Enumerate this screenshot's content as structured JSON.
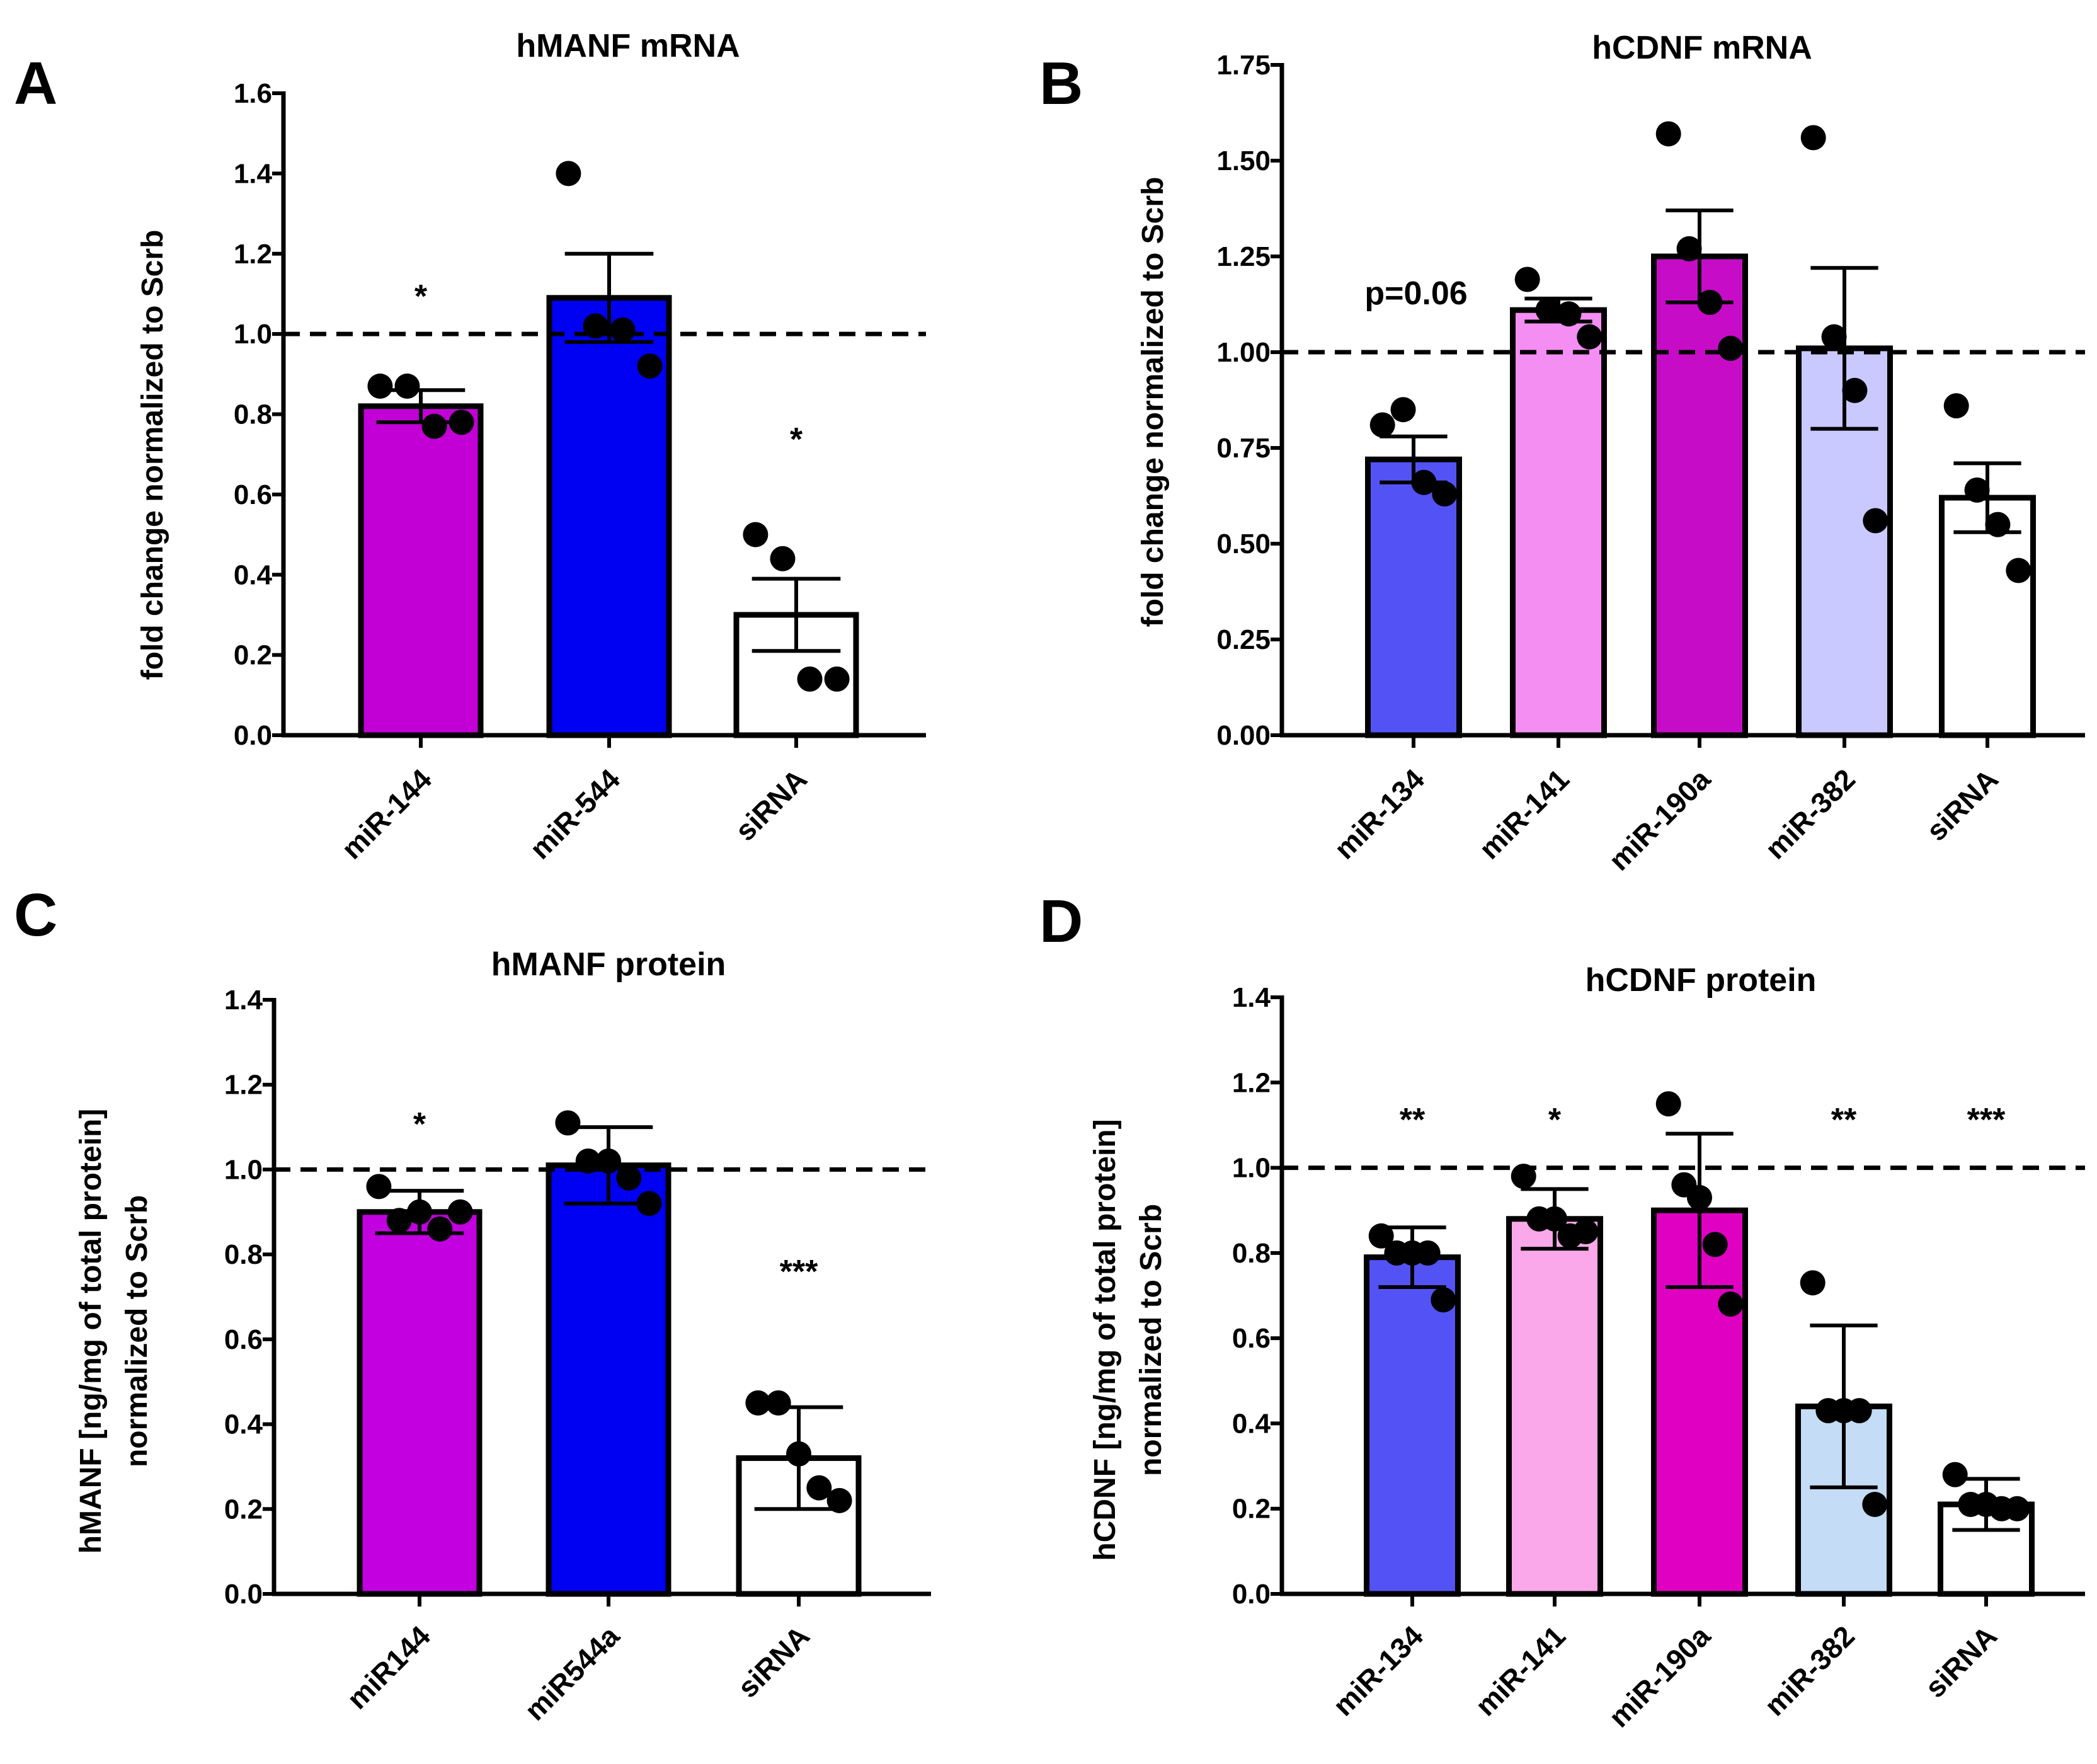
{
  "chart_data": [
    {
      "panel": "A",
      "type": "bar",
      "title": "hMANF mRNA",
      "xlabel": "",
      "ylabel": "fold change normalized to Scrb",
      "ylim": [
        0,
        1.6
      ],
      "yticks": [
        "0.0",
        "0.2",
        "0.4",
        "0.6",
        "0.8",
        "1.0",
        "1.2",
        "1.4",
        "1.6"
      ],
      "reference_line": 1.0,
      "categories": [
        "miR-144",
        "miR-544",
        "siRNA"
      ],
      "values": [
        0.82,
        1.09,
        0.3
      ],
      "errors": [
        0.04,
        0.11,
        0.09
      ],
      "colors": [
        "#c200d6",
        "#0000f2",
        "#ffffff"
      ],
      "points": [
        [
          0.87,
          0.87,
          0.77,
          0.78
        ],
        [
          1.4,
          1.02,
          1.01,
          0.92
        ],
        [
          0.5,
          0.44,
          0.14,
          0.14
        ]
      ],
      "annotations": [
        "*",
        "",
        "*"
      ]
    },
    {
      "panel": "B",
      "type": "bar",
      "title": "hCDNF mRNA",
      "xlabel": "",
      "ylabel": "fold change normalized to Scrb",
      "ylim": [
        0,
        1.75
      ],
      "yticks": [
        "0.00",
        "0.25",
        "0.50",
        "0.75",
        "1.00",
        "1.25",
        "1.50",
        "1.75"
      ],
      "reference_line": 1.0,
      "categories": [
        "miR-134",
        "miR-141",
        "miR-190a",
        "miR-382",
        "siRNA"
      ],
      "values": [
        0.72,
        1.11,
        1.25,
        1.01,
        0.62
      ],
      "errors": [
        0.06,
        0.03,
        0.12,
        0.21,
        0.09
      ],
      "colors": [
        "#5353f5",
        "#f48ef3",
        "#c70cc7",
        "#c9c9ff",
        "#ffffff"
      ],
      "points": [
        [
          0.81,
          0.85,
          0.66,
          0.63
        ],
        [
          1.19,
          1.11,
          1.1,
          1.04
        ],
        [
          1.57,
          1.27,
          1.13,
          1.01
        ],
        [
          1.56,
          1.04,
          0.9,
          0.56
        ],
        [
          0.86,
          0.64,
          0.55,
          0.43
        ]
      ],
      "annotations": [
        "p=0.06",
        "",
        "",
        "",
        ""
      ]
    },
    {
      "panel": "C",
      "type": "bar",
      "title": "hMANF protein",
      "xlabel": "",
      "ylabel": "hMANF [ng/mg of total protein]",
      "ylabel2": "normalized to Scrb",
      "ylim": [
        0,
        1.4
      ],
      "yticks": [
        "0.0",
        "0.2",
        "0.4",
        "0.6",
        "0.8",
        "1.0",
        "1.2",
        "1.4"
      ],
      "reference_line": 1.0,
      "categories": [
        "miR144",
        "miR544a",
        "siRNA"
      ],
      "values": [
        0.9,
        1.01,
        0.32
      ],
      "errors": [
        0.05,
        0.09,
        0.12
      ],
      "colors": [
        "#c200e0",
        "#0000f2",
        "#ffffff"
      ],
      "points": [
        [
          0.96,
          0.88,
          0.9,
          0.86,
          0.9
        ],
        [
          1.11,
          1.02,
          1.02,
          0.98,
          0.92
        ],
        [
          0.45,
          0.45,
          0.33,
          0.25,
          0.22
        ]
      ],
      "annotations": [
        "*",
        "",
        "***"
      ]
    },
    {
      "panel": "D",
      "type": "bar",
      "title": "hCDNF protein",
      "xlabel": "",
      "ylabel": "hCDNF [ng/mg of total protein]",
      "ylabel2": "normalized to Scrb",
      "ylim": [
        0,
        1.4
      ],
      "yticks": [
        "0.0",
        "0.2",
        "0.4",
        "0.6",
        "0.8",
        "1.0",
        "1.2",
        "1.4"
      ],
      "reference_line": 1.0,
      "categories": [
        "miR-134",
        "miR-141",
        "miR-190a",
        "miR-382",
        "siRNA"
      ],
      "values": [
        0.79,
        0.88,
        0.9,
        0.44,
        0.21
      ],
      "errors": [
        0.07,
        0.07,
        0.18,
        0.19,
        0.06
      ],
      "colors": [
        "#5353f5",
        "#fba8ea",
        "#e000c2",
        "#c4dcf5",
        "#ffffff"
      ],
      "points": [
        [
          0.84,
          0.8,
          0.8,
          0.8,
          0.69
        ],
        [
          0.98,
          0.88,
          0.88,
          0.84,
          0.85
        ],
        [
          1.15,
          0.96,
          0.93,
          0.82,
          0.68
        ],
        [
          0.73,
          0.43,
          0.43,
          0.43,
          0.21
        ],
        [
          0.28,
          0.21,
          0.21,
          0.2,
          0.2
        ]
      ],
      "annotations": [
        "**",
        "*",
        "",
        "**",
        "***"
      ]
    }
  ]
}
